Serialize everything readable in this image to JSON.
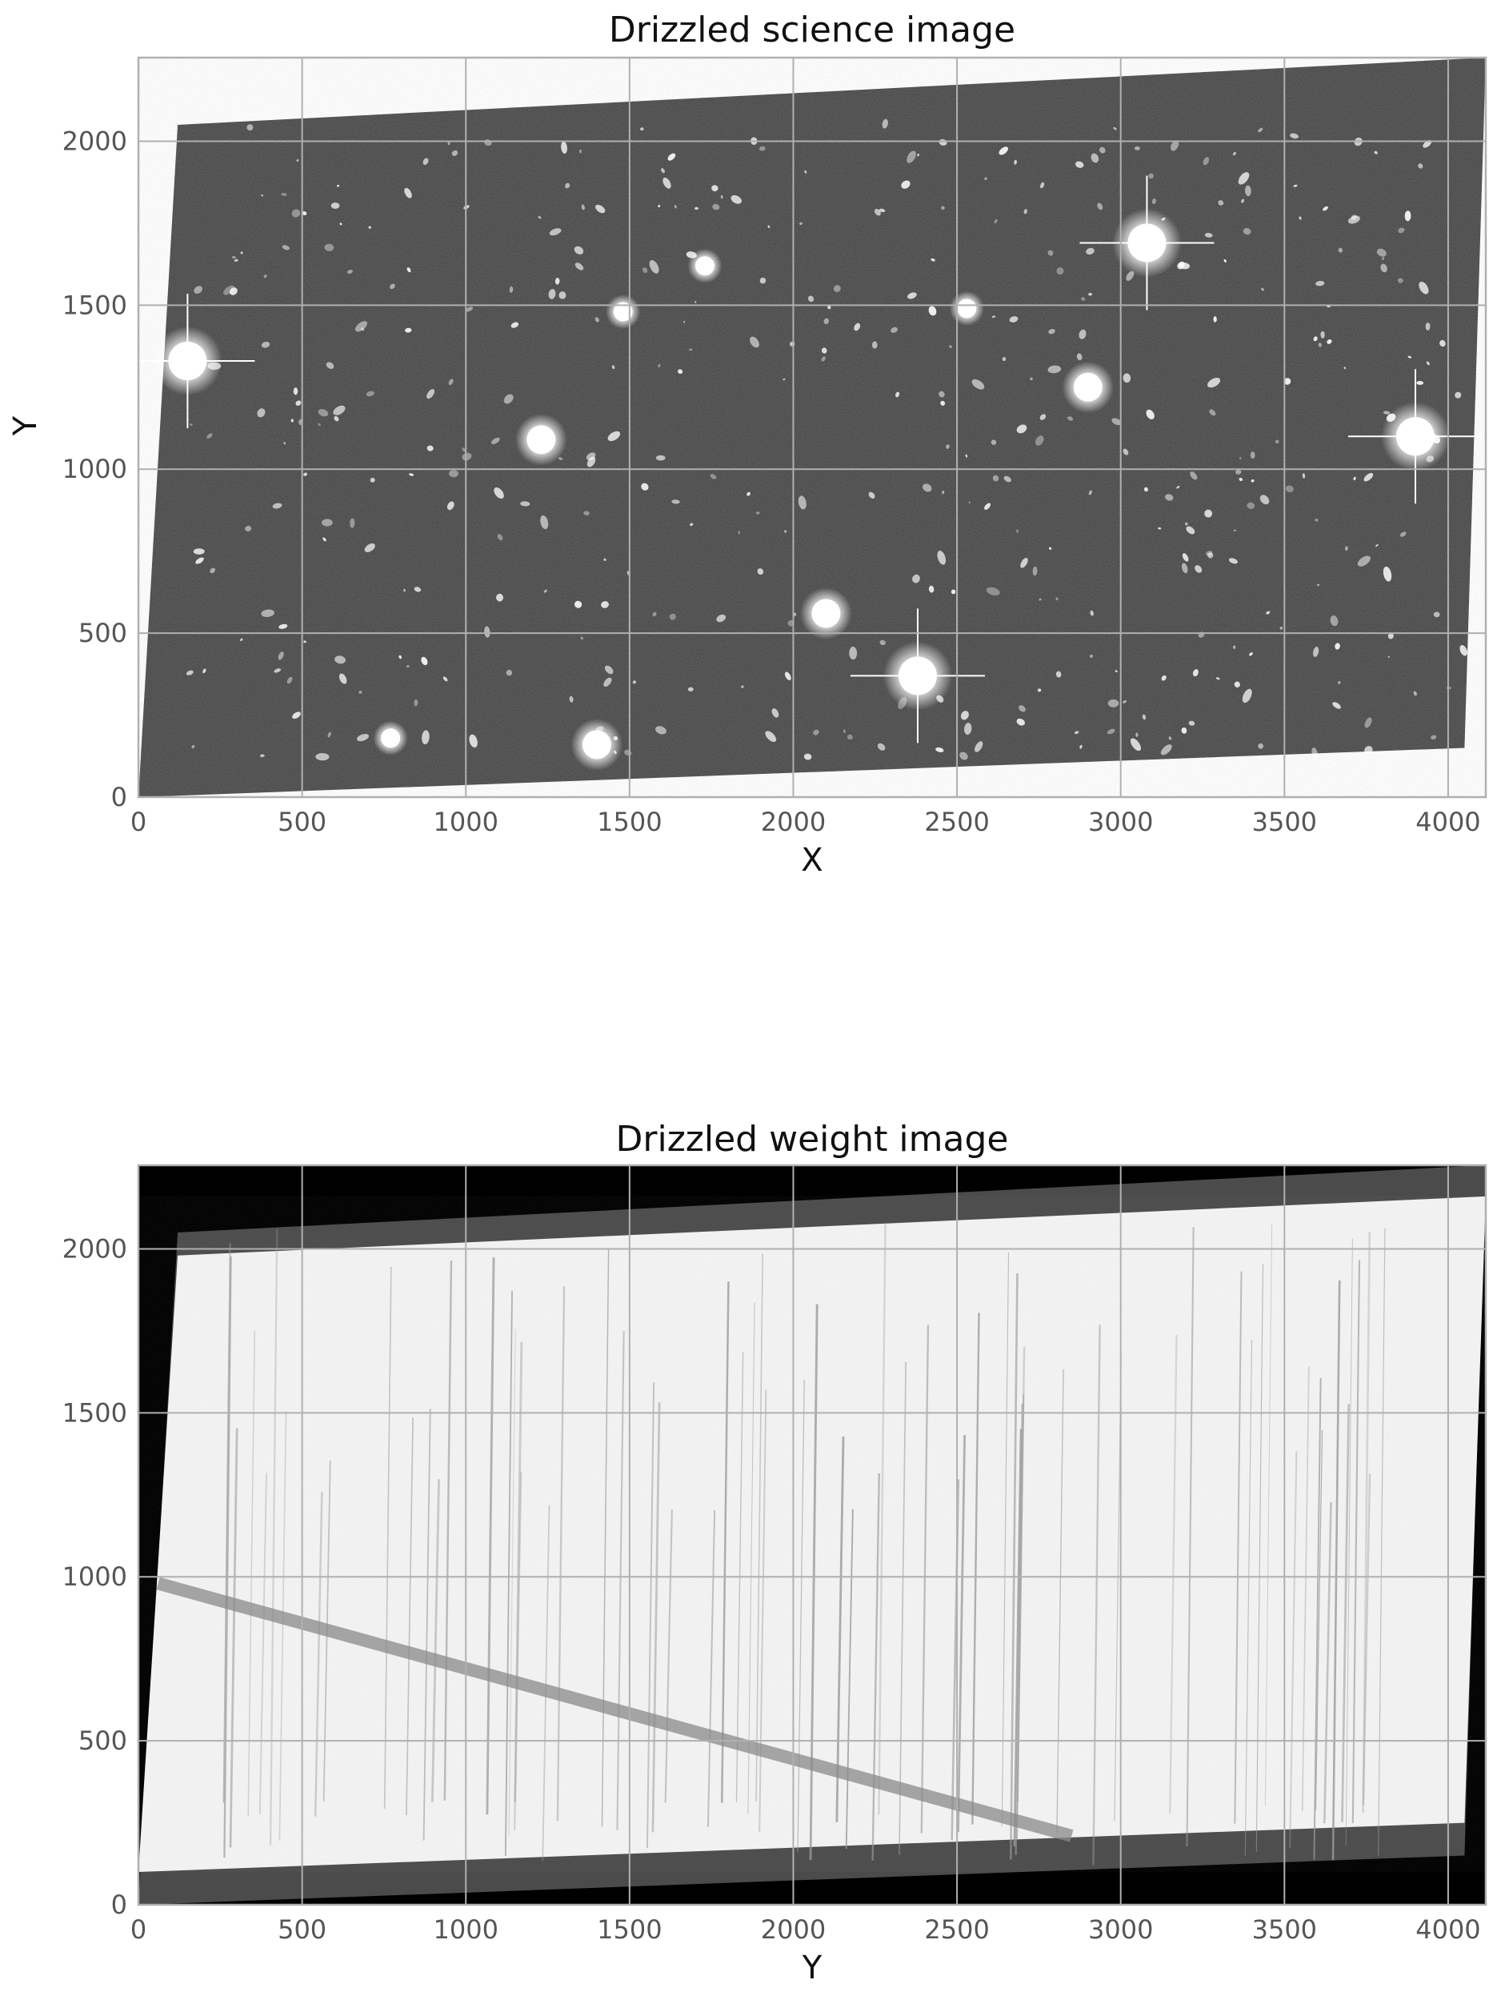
{
  "chart_data": [
    {
      "type": "heatmap",
      "title": "Drizzled science image",
      "xlabel": "X",
      "ylabel": "Y",
      "xlim": [
        0,
        4115
      ],
      "ylim": [
        0,
        2255
      ],
      "xticks": [
        0,
        500,
        1000,
        1500,
        2000,
        2500,
        3000,
        3500,
        4000
      ],
      "yticks": [
        0,
        500,
        1000,
        1500,
        2000
      ],
      "grid": true,
      "colormap": "gray",
      "background": "#ffffff",
      "footprint": [
        [
          0,
          0
        ],
        [
          120,
          2050
        ],
        [
          4115,
          2255
        ],
        [
          4050,
          150
        ]
      ],
      "bright_sources": [
        {
          "x": 150,
          "y": 1330,
          "size": 3
        },
        {
          "x": 1230,
          "y": 1090,
          "size": 2
        },
        {
          "x": 1480,
          "y": 1480,
          "size": 1
        },
        {
          "x": 1730,
          "y": 1620,
          "size": 1
        },
        {
          "x": 2100,
          "y": 560,
          "size": 2
        },
        {
          "x": 2380,
          "y": 370,
          "size": 3
        },
        {
          "x": 2530,
          "y": 1490,
          "size": 1
        },
        {
          "x": 2900,
          "y": 1250,
          "size": 2
        },
        {
          "x": 3080,
          "y": 1690,
          "size": 3
        },
        {
          "x": 3900,
          "y": 1100,
          "size": 3
        },
        {
          "x": 1400,
          "y": 160,
          "size": 2
        },
        {
          "x": 770,
          "y": 180,
          "size": 1
        }
      ]
    },
    {
      "type": "heatmap",
      "title": "Drizzled weight image",
      "xlabel": "Y",
      "ylabel": "",
      "xlim": [
        0,
        4115
      ],
      "ylim": [
        0,
        2255
      ],
      "xticks": [
        0,
        500,
        1000,
        1500,
        2000,
        2500,
        3000,
        3500,
        4000
      ],
      "yticks": [
        0,
        500,
        1000,
        1500,
        2000
      ],
      "grid": true,
      "colormap": "gray",
      "background": "#000000",
      "footprint": [
        [
          0,
          0
        ],
        [
          120,
          2050
        ],
        [
          4115,
          2255
        ],
        [
          4050,
          150
        ]
      ],
      "high_weight_region": [
        [
          0,
          100
        ],
        [
          120,
          1980
        ],
        [
          4115,
          2160
        ],
        [
          4050,
          250
        ]
      ],
      "diagonal_band": {
        "from": [
          60,
          980
        ],
        "to": [
          2850,
          210
        ]
      }
    }
  ]
}
